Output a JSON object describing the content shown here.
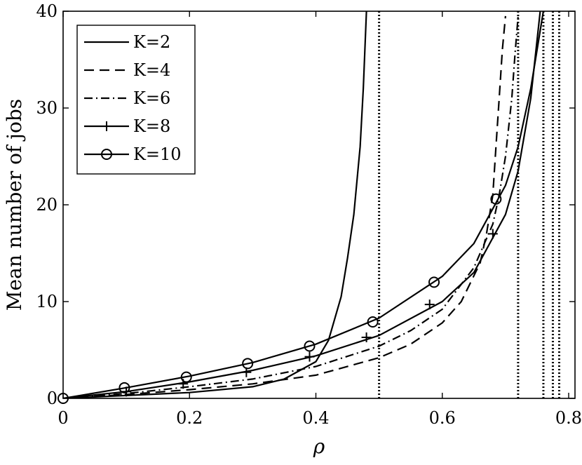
{
  "chart_data": {
    "type": "line",
    "xlabel": "ρ",
    "ylabel": "Mean number of jobs",
    "xlim": [
      0,
      0.81
    ],
    "ylim": [
      0,
      40
    ],
    "xticks": [
      0,
      0.2,
      0.4,
      0.6,
      0.8
    ],
    "xtick_labels": [
      "0",
      "0.2",
      "0.4",
      "0.6",
      "0.8"
    ],
    "yticks": [
      0,
      10,
      20,
      30,
      40
    ],
    "ytick_labels": [
      "0",
      "10",
      "20",
      "30",
      "40"
    ],
    "grid": false,
    "legend_position": "top-left",
    "stability_limits": [
      0.5,
      0.72,
      0.76,
      0.775,
      0.785
    ],
    "series": [
      {
        "name": "K=2",
        "style": "solid",
        "marker": "none",
        "x": [
          0,
          0.1,
          0.2,
          0.3,
          0.35,
          0.4,
          0.42,
          0.44,
          0.45,
          0.46,
          0.47,
          0.475,
          0.48
        ],
        "y": [
          0,
          0.3,
          0.6,
          1.2,
          2.0,
          3.8,
          6.0,
          10.5,
          14.5,
          19.0,
          26.0,
          32.0,
          40.0
        ]
      },
      {
        "name": "K=4",
        "style": "dashed",
        "marker": "none",
        "x": [
          0,
          0.1,
          0.2,
          0.3,
          0.4,
          0.5,
          0.55,
          0.6,
          0.63,
          0.66,
          0.67,
          0.68,
          0.685,
          0.69,
          0.695,
          0.7
        ],
        "y": [
          0,
          0.4,
          0.9,
          1.5,
          2.4,
          4.2,
          5.6,
          7.8,
          10.0,
          14.0,
          17.0,
          21.0,
          26.0,
          31.0,
          36.0,
          39.5
        ]
      },
      {
        "name": "K=6",
        "style": "dashdot",
        "marker": "none",
        "x": [
          0,
          0.1,
          0.2,
          0.3,
          0.4,
          0.5,
          0.55,
          0.6,
          0.65,
          0.68,
          0.69,
          0.7,
          0.71,
          0.715,
          0.72
        ],
        "y": [
          0,
          0.5,
          1.2,
          2.0,
          3.3,
          5.4,
          7.0,
          9.2,
          13.5,
          18.0,
          21.0,
          25.0,
          31.0,
          35.5,
          39.5
        ]
      },
      {
        "name": "K=8",
        "style": "solid",
        "marker": "plus",
        "x": [
          0,
          0.1,
          0.2,
          0.3,
          0.4,
          0.5,
          0.6,
          0.65,
          0.7,
          0.72,
          0.74,
          0.75,
          0.755
        ],
        "y": [
          0,
          0.7,
          1.7,
          2.9,
          4.4,
          6.5,
          10.0,
          13.0,
          19.0,
          23.5,
          31.0,
          37.0,
          40.0
        ],
        "marker_x": [
          0.1,
          0.19,
          0.29,
          0.39,
          0.48,
          0.58,
          0.68
        ],
        "marker_y": [
          0.7,
          1.5,
          2.7,
          4.3,
          6.3,
          9.7,
          17.0
        ]
      },
      {
        "name": "K=10",
        "style": "solid",
        "marker": "circle",
        "x": [
          0,
          0.1,
          0.2,
          0.3,
          0.4,
          0.5,
          0.6,
          0.65,
          0.7,
          0.72,
          0.74,
          0.75,
          0.76
        ],
        "y": [
          0,
          1.1,
          2.3,
          3.7,
          5.6,
          8.3,
          12.6,
          16.0,
          22.0,
          26.0,
          32.0,
          36.0,
          40.0
        ],
        "marker_x": [
          0,
          0.097,
          0.195,
          0.292,
          0.39,
          0.49,
          0.587,
          0.685
        ],
        "marker_y": [
          0,
          1.1,
          2.2,
          3.6,
          5.4,
          7.9,
          12.0,
          20.6
        ]
      }
    ]
  }
}
